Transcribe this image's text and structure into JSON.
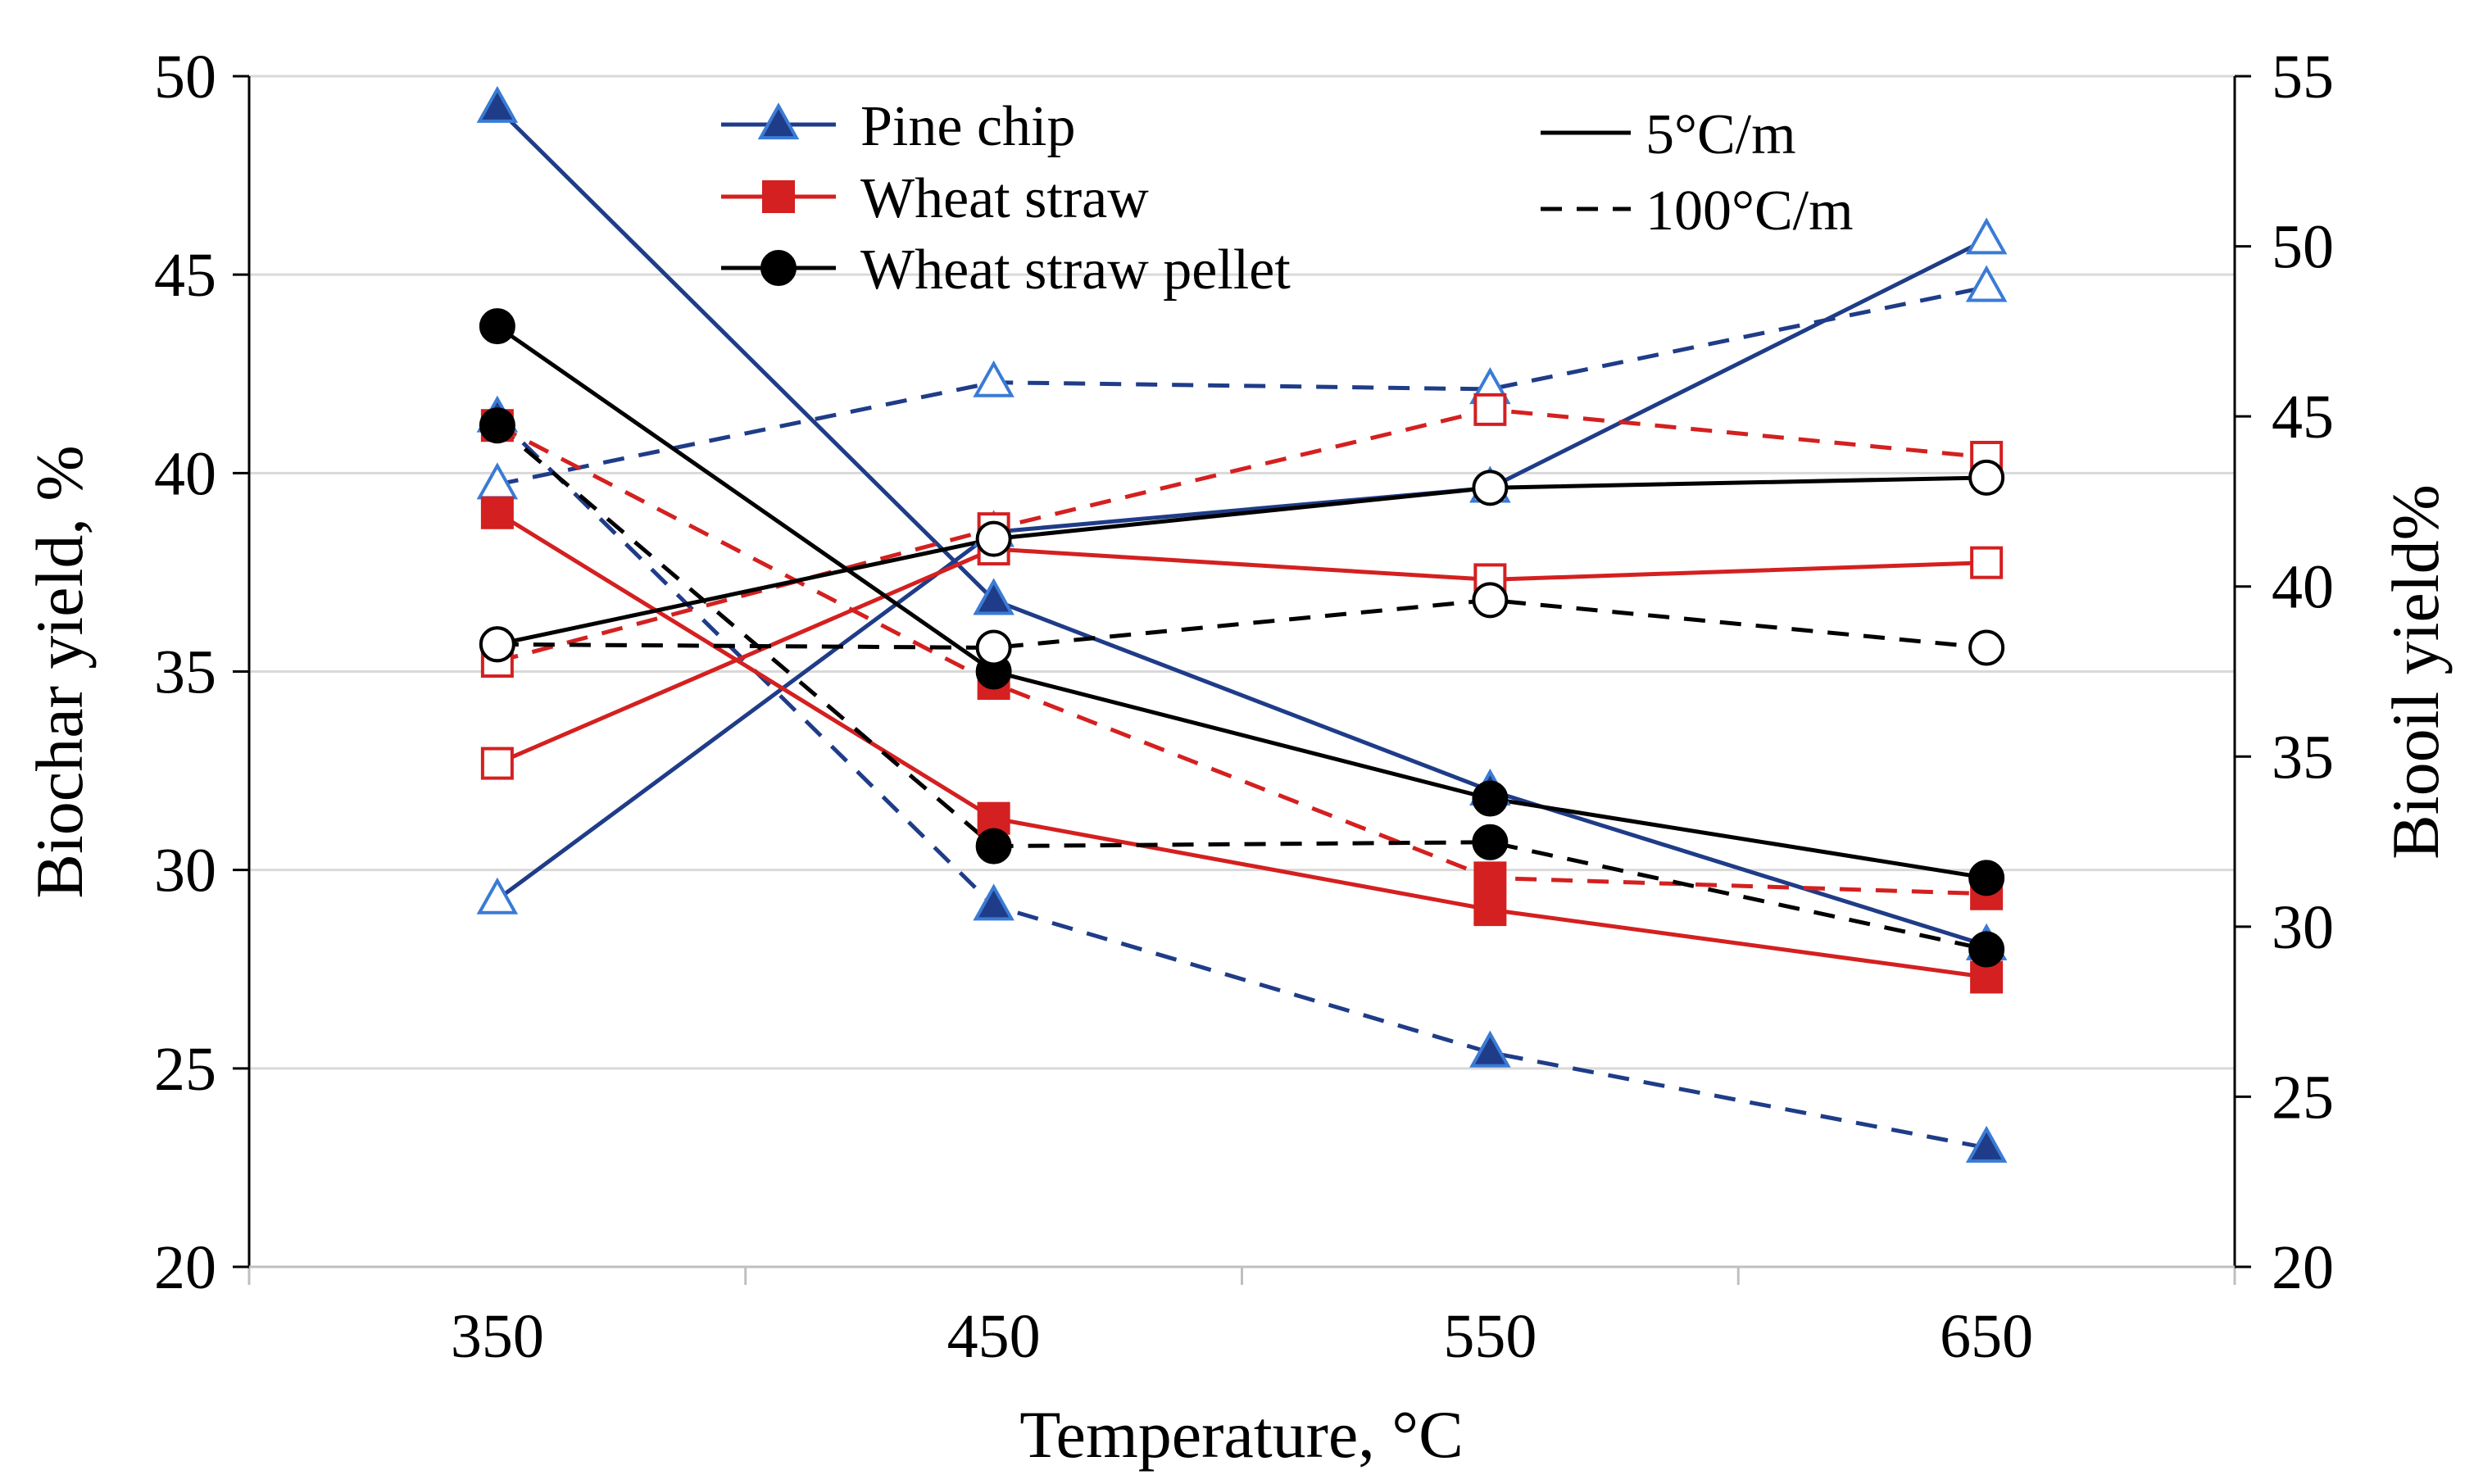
{
  "chart_data": {
    "type": "line",
    "xlabel": "Temperature, °C",
    "ylabel_left": "Biochar yield, %",
    "ylabel_right": "Biooil yield%",
    "categories": [
      "350",
      "450",
      "550",
      "650"
    ],
    "x": [
      350,
      450,
      550,
      650
    ],
    "xlim": [
      300,
      700
    ],
    "ylim_left": [
      20,
      50
    ],
    "ylim_right": [
      20,
      55
    ],
    "yticks_left": [
      "20",
      "25",
      "30",
      "35",
      "40",
      "45",
      "50"
    ],
    "yticks_right": [
      "20",
      "25",
      "30",
      "35",
      "40",
      "45",
      "50",
      "55"
    ],
    "grid": "horizontal",
    "legend": [
      {
        "label": "Pine chip",
        "color": "#1f3c88",
        "marker": "triangle"
      },
      {
        "label": "Wheat straw",
        "color": "#d42020",
        "marker": "square"
      },
      {
        "label": "Wheat straw pellet",
        "color": "#000000",
        "marker": "circle"
      }
    ],
    "legend_rates": [
      {
        "label": "5°C/m",
        "dash": "solid"
      },
      {
        "label": "100°C/m",
        "dash": "dashed"
      }
    ],
    "series": [
      {
        "name": "Pine chip biochar 5°C/m",
        "axis": "left",
        "color": "#1f3c88",
        "marker": "triangle",
        "filled": true,
        "dash": "solid",
        "values": [
          49.2,
          36.8,
          32.0,
          28.1
        ]
      },
      {
        "name": "Pine chip biochar 100°C/m",
        "axis": "left",
        "color": "#1f3c88",
        "marker": "triangle",
        "filled": true,
        "dash": "dashed",
        "values": [
          41.4,
          29.1,
          25.4,
          23.0
        ]
      },
      {
        "name": "Pine chip biooil 5°C/m",
        "axis": "right",
        "color": "#1f3c88",
        "marker": "triangle",
        "filled": false,
        "dash": "solid",
        "values": [
          30.8,
          41.6,
          42.9,
          50.2
        ]
      },
      {
        "name": "Pine chip biooil 100°C/m",
        "axis": "right",
        "color": "#1f3c88",
        "marker": "triangle",
        "filled": false,
        "dash": "dashed",
        "values": [
          43.0,
          46.0,
          45.8,
          48.8
        ]
      },
      {
        "name": "Wheat straw biochar 5°C/m",
        "axis": "left",
        "color": "#d42020",
        "marker": "square",
        "filled": true,
        "dash": "solid",
        "values": [
          39.0,
          31.3,
          29.0,
          27.3
        ]
      },
      {
        "name": "Wheat straw biochar 100°C/m",
        "axis": "left",
        "color": "#d42020",
        "marker": "square",
        "filled": true,
        "dash": "dashed",
        "values": [
          41.2,
          34.7,
          29.8,
          29.4
        ]
      },
      {
        "name": "Wheat straw biooil 5°C/m",
        "axis": "right",
        "color": "#d42020",
        "marker": "square",
        "filled": false,
        "dash": "solid",
        "values": [
          34.8,
          41.1,
          40.2,
          40.7
        ]
      },
      {
        "name": "Wheat straw biooil 100°C/m",
        "axis": "right",
        "color": "#d42020",
        "marker": "square",
        "filled": false,
        "dash": "dashed",
        "values": [
          37.8,
          41.7,
          45.2,
          43.8
        ]
      },
      {
        "name": "Wheat straw pellet biochar 5°C/m",
        "axis": "left",
        "color": "#000000",
        "marker": "circle",
        "filled": true,
        "dash": "solid",
        "values": [
          43.7,
          35.0,
          31.8,
          29.8
        ]
      },
      {
        "name": "Wheat straw pellet biochar 100°C/m",
        "axis": "left",
        "color": "#000000",
        "marker": "circle",
        "filled": true,
        "dash": "dashed",
        "values": [
          41.2,
          30.6,
          30.7,
          28.0
        ]
      },
      {
        "name": "Wheat straw pellet biooil 5°C/m",
        "axis": "right",
        "color": "#000000",
        "marker": "circle",
        "filled": false,
        "dash": "solid",
        "values": [
          38.3,
          41.4,
          42.9,
          43.2
        ]
      },
      {
        "name": "Wheat straw pellet biooil 100°C/m",
        "axis": "right",
        "color": "#000000",
        "marker": "circle",
        "filled": false,
        "dash": "dashed",
        "values": [
          38.3,
          38.2,
          39.6,
          38.2
        ]
      }
    ]
  }
}
